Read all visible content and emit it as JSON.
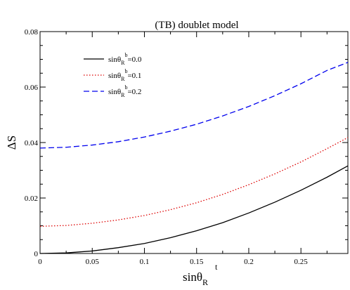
{
  "chart_data": {
    "type": "line",
    "title": "(TB) doublet model",
    "xlabel_main": "sinθ",
    "xlabel_sub": "R",
    "xlabel_sup": "t",
    "ylabel": "ΔS",
    "xlim": [
      0,
      0.295
    ],
    "ylim": [
      0,
      0.08
    ],
    "xticks": [
      0,
      0.05,
      0.1,
      0.15,
      0.2,
      0.25
    ],
    "xtick_labels": [
      "0",
      "0.05",
      "0.1",
      "0.15",
      "0.2",
      "0.25"
    ],
    "yticks": [
      0,
      0.02,
      0.04,
      0.06,
      0.08
    ],
    "ytick_labels": [
      "0",
      "0.02",
      "0.04",
      "0.06",
      "0.08"
    ],
    "grid": false,
    "legend_position": "top-left",
    "x": [
      0,
      0.025,
      0.05,
      0.075,
      0.1,
      0.125,
      0.15,
      0.175,
      0.2,
      0.225,
      0.25,
      0.275,
      0.295
    ],
    "series": [
      {
        "label_main": "sinθ",
        "label_sub": "R",
        "label_sup": "b",
        "label_value": "=0.0",
        "color": "#000000",
        "dash": "solid",
        "values": [
          0,
          0.0002,
          0.0009,
          0.0021,
          0.0036,
          0.0057,
          0.0082,
          0.0111,
          0.0146,
          0.0185,
          0.0228,
          0.0275,
          0.0316
        ]
      },
      {
        "label_main": "sinθ",
        "label_sub": "R",
        "label_sup": "b",
        "label_value": "=0.1",
        "color": "#dd0000",
        "dash": "dotted",
        "values": [
          0.0098,
          0.0101,
          0.0109,
          0.0121,
          0.0137,
          0.0158,
          0.0183,
          0.0213,
          0.0248,
          0.0287,
          0.033,
          0.0378,
          0.0418
        ]
      },
      {
        "label_main": "sinθ",
        "label_sub": "R",
        "label_sup": "b",
        "label_value": "=0.2",
        "color": "#0000ee",
        "dash": "dashed",
        "values": [
          0.038,
          0.0383,
          0.0391,
          0.0403,
          0.042,
          0.0441,
          0.0466,
          0.0496,
          0.053,
          0.0569,
          0.0612,
          0.066,
          0.0689
        ]
      }
    ]
  }
}
